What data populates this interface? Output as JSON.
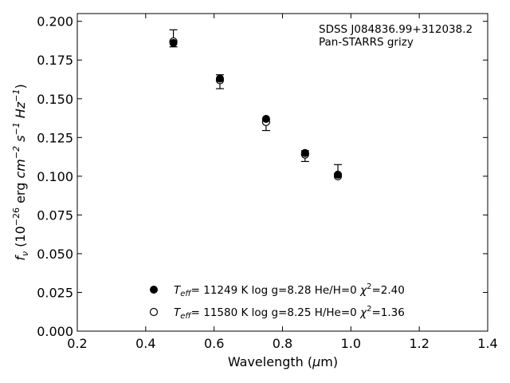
{
  "chart_data": {
    "type": "scatter",
    "title": "",
    "xlabel_prefix": "Wavelength (",
    "xlabel_mu": "μ",
    "xlabel_suffix": "m)",
    "ylabel_f": "f",
    "ylabel_nu": "ν",
    "ylabel_open": " (10",
    "ylabel_exp1": "−26",
    "ylabel_erg": " erg ",
    "ylabel_cm": "cm",
    "ylabel_exp2": "−2",
    "ylabel_s": " s",
    "ylabel_exp3": "−1",
    "ylabel_hz": " Hz",
    "ylabel_exp4": "−1",
    "ylabel_close": ")",
    "xlim": [
      0.2,
      1.4
    ],
    "ylim": [
      0.0,
      0.205
    ],
    "x_ticks": [
      "0.2",
      "0.4",
      "0.6",
      "0.8",
      "1.0",
      "1.2",
      "1.4"
    ],
    "y_ticks": [
      "0.000",
      "0.025",
      "0.050",
      "0.075",
      "0.100",
      "0.125",
      "0.150",
      "0.175",
      "0.200"
    ],
    "grid": false,
    "annotation_lines": [
      "SDSS J084836.99+312038.2",
      "Pan-STARRS grizy"
    ],
    "observed": {
      "x": [
        0.481,
        0.617,
        0.752,
        0.866,
        0.962
      ],
      "y": [
        0.189,
        0.161,
        0.133,
        0.113,
        0.1015
      ],
      "yerr_up": [
        0.0055,
        0.0045,
        0.0035,
        0.0035,
        0.006
      ],
      "yerr_down": [
        0.0055,
        0.0045,
        0.0035,
        0.0035,
        0.0
      ]
    },
    "series": [
      {
        "name": "Teff= 11249 K  log g=8.28  He/H=0  χ2=2.40",
        "marker": "filled-circle",
        "x": [
          0.481,
          0.617,
          0.752,
          0.866,
          0.962
        ],
        "y": [
          0.186,
          0.163,
          0.137,
          0.115,
          0.101
        ]
      },
      {
        "name": "Teff= 11580 K  log g=8.25  H/He=0  χ2=1.36",
        "marker": "open-circle",
        "x": [
          0.481,
          0.617,
          0.752,
          0.866,
          0.962
        ],
        "y": [
          0.187,
          0.162,
          0.135,
          0.114,
          0.1
        ]
      }
    ],
    "legend": {
      "placement": "lower-center",
      "entries": [
        {
          "teff_t": "T",
          "teff_sub": "eff",
          "mid": "= 11249 K  log g=8.28  He/H=0  ",
          "chi": "χ",
          "chi_exp": "2",
          "chi_val": "=2.40"
        },
        {
          "teff_t": "T",
          "teff_sub": "eff",
          "mid": "= 11580 K  log g=8.25  H/He=0  ",
          "chi": "χ",
          "chi_exp": "2",
          "chi_val": "=1.36"
        }
      ]
    }
  }
}
